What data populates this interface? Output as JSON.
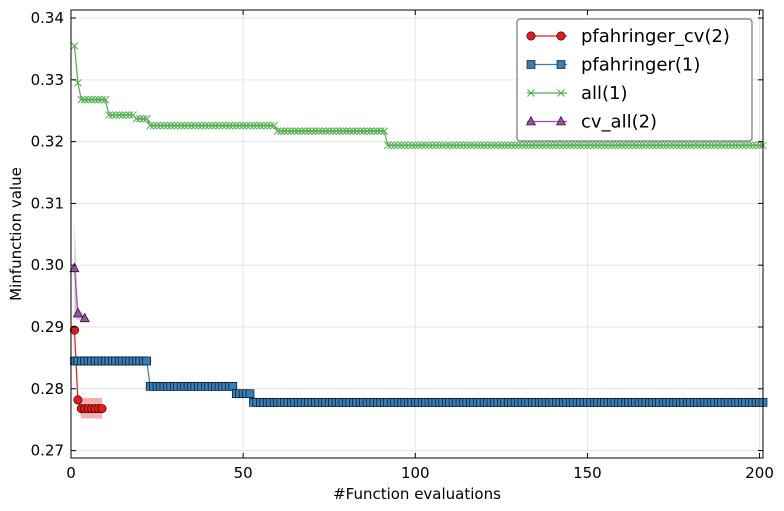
{
  "chart_data": {
    "type": "line",
    "title": "",
    "xlabel": "#Function evaluations",
    "ylabel": "Minfunction value",
    "xlim": [
      0,
      201
    ],
    "ylim": [
      0.2688,
      0.3413
    ],
    "xticks": [
      0,
      50,
      100,
      150,
      200
    ],
    "xtick_labels": [
      "0",
      "50",
      "100",
      "150",
      "200"
    ],
    "yticks": [
      0.27,
      0.28,
      0.29,
      0.3,
      0.31,
      0.32,
      0.33,
      0.34
    ],
    "ytick_labels": [
      "0.27",
      "0.28",
      "0.29",
      "0.30",
      "0.31",
      "0.32",
      "0.33",
      "0.34"
    ],
    "grid": true,
    "legend_position": "top-right",
    "series": [
      {
        "name": "pfahringer_cv(2)",
        "color": "#e41a1c",
        "marker": "circle",
        "points": [
          [
            1,
            0.2895
          ],
          [
            2,
            0.2782
          ],
          [
            3,
            0.2768
          ],
          [
            4,
            0.2768
          ],
          [
            5,
            0.2768
          ],
          [
            6,
            0.2768
          ],
          [
            7,
            0.2768
          ],
          [
            8,
            0.2768
          ],
          [
            9,
            0.2768
          ]
        ],
        "band": [
          [
            1,
            0.2905,
            0.2885
          ],
          [
            2,
            0.2792,
            0.2772
          ],
          [
            3,
            0.2785,
            0.2752
          ],
          [
            9,
            0.2785,
            0.2752
          ]
        ]
      },
      {
        "name": "pfahringer(1)",
        "color": "#377eb8",
        "marker": "square",
        "steps": [
          [
            1,
            0.2845
          ],
          [
            23,
            0.2804
          ],
          [
            48,
            0.2792
          ],
          [
            53,
            0.2778
          ],
          [
            201,
            0.2778
          ]
        ]
      },
      {
        "name": "all(1)",
        "color": "#4daf4a",
        "marker": "x",
        "steps": [
          [
            1,
            0.3355
          ],
          [
            2,
            0.3295
          ],
          [
            3,
            0.3268
          ],
          [
            11,
            0.3243
          ],
          [
            19,
            0.3237
          ],
          [
            23,
            0.3226
          ],
          [
            60,
            0.3217
          ],
          [
            92,
            0.3194
          ],
          [
            201,
            0.3194
          ]
        ]
      },
      {
        "name": "cv_all(2)",
        "color": "#984ea3",
        "marker": "triangle",
        "points": [
          [
            1,
            0.2995
          ],
          [
            2,
            0.2922
          ],
          [
            4,
            0.2914
          ]
        ],
        "band": [
          [
            1,
            0.3075,
            0.2915
          ],
          [
            2,
            0.2932,
            0.2912
          ],
          [
            4,
            0.2918,
            0.291
          ]
        ]
      }
    ]
  }
}
